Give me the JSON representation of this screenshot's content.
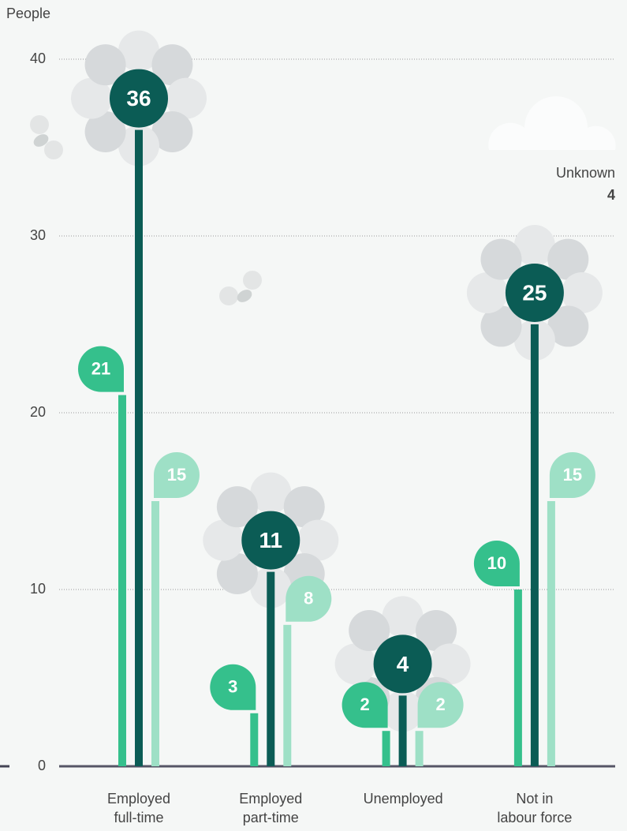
{
  "chart_data": {
    "type": "flower-bar",
    "y_label": "People",
    "categories": [
      "Employed full-time",
      "Employed part-time",
      "Unemployed",
      "Not in labour force"
    ],
    "series": [
      {
        "color": "#35c08c",
        "values": [
          21,
          3,
          2,
          10
        ]
      },
      {
        "color": "#0b5c55",
        "values": [
          36,
          11,
          4,
          25
        ]
      },
      {
        "color": "#9ee0c6",
        "values": [
          15,
          8,
          2,
          15
        ]
      }
    ],
    "ylim": [
      0,
      40
    ],
    "yticks": [
      0,
      10,
      20,
      30,
      40
    ],
    "grid": true,
    "annotation": {
      "label": "Unknown",
      "value": 4
    }
  }
}
